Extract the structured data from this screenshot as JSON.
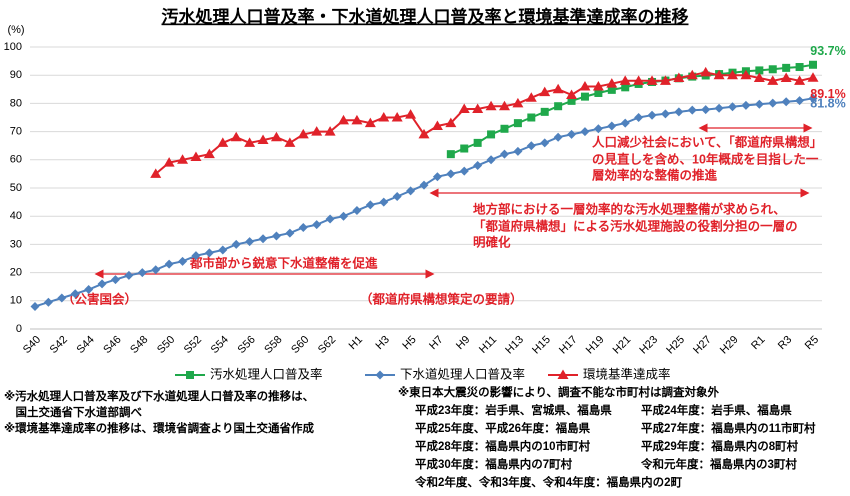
{
  "chart_data": {
    "type": "line",
    "title": "汚水処理人口普及率・下水道処理人口普及率と環境基準達成率の推移",
    "y_label": "(%)",
    "categories": [
      "S40",
      null,
      "S42",
      null,
      "S44",
      null,
      "S46",
      null,
      "S48",
      null,
      "S50",
      null,
      "S52",
      null,
      "S54",
      null,
      "S56",
      null,
      "S58",
      null,
      "S60",
      null,
      "S62",
      null,
      "H1",
      null,
      "H3",
      null,
      "H5",
      null,
      "H7",
      null,
      "H9",
      null,
      "H11",
      null,
      "H13",
      null,
      "H15",
      null,
      "H17",
      null,
      "H19",
      null,
      "H21",
      null,
      "H23",
      null,
      "H25",
      null,
      "H27",
      null,
      "H29",
      null,
      "R1",
      null,
      "R3",
      null,
      "R5"
    ],
    "ylim": [
      0,
      100
    ],
    "yticks": [
      0,
      10,
      20,
      30,
      40,
      50,
      60,
      70,
      80,
      90,
      100
    ],
    "grid": true,
    "series": [
      {
        "name": "汚水処理人口普及率",
        "color": "#1fa84b",
        "marker": "square",
        "values": [
          null,
          null,
          null,
          null,
          null,
          null,
          null,
          null,
          null,
          null,
          null,
          null,
          null,
          null,
          null,
          null,
          null,
          null,
          null,
          null,
          null,
          null,
          null,
          null,
          null,
          null,
          null,
          null,
          null,
          null,
          null,
          62,
          64,
          66,
          69,
          71,
          73,
          75,
          77,
          79,
          80.9,
          82.4,
          83.7,
          84.8,
          85.7,
          86.9,
          87.6,
          88.1,
          88.9,
          89.5,
          89.9,
          90.4,
          90.9,
          91.4,
          91.7,
          92.1,
          92.6,
          92.9,
          93.7
        ],
        "value_labels": [
          null,
          null,
          null,
          null,
          null,
          null,
          null,
          null,
          null,
          null,
          null,
          null,
          null,
          null,
          null,
          null,
          null,
          null,
          null,
          null,
          null,
          null,
          null,
          null,
          null,
          null,
          null,
          null,
          null,
          null,
          null,
          null,
          null,
          null,
          null,
          null,
          null,
          null,
          null,
          null,
          null,
          null,
          null,
          null,
          null,
          null,
          null,
          null,
          null,
          null,
          null,
          null,
          null,
          null,
          null,
          null,
          null,
          null,
          "93.7%"
        ]
      },
      {
        "name": "下水道処理人口普及率",
        "color": "#4f81bd",
        "marker": "diamond",
        "values": [
          8,
          9.5,
          11,
          12.5,
          14,
          16,
          17.5,
          19,
          20,
          21,
          23,
          24,
          26,
          27,
          28,
          30,
          31,
          32,
          33,
          34,
          36,
          37,
          39,
          40,
          42,
          44,
          45,
          47,
          49,
          51,
          54,
          55,
          56,
          58,
          60,
          62,
          63,
          65,
          66,
          68,
          69,
          70,
          71,
          72,
          73,
          75,
          75.8,
          76.3,
          77,
          77.6,
          77.8,
          78.3,
          78.8,
          79.3,
          79.7,
          80.1,
          80.6,
          81,
          81.8
        ],
        "value_labels": [
          null,
          null,
          null,
          null,
          null,
          null,
          null,
          null,
          null,
          null,
          null,
          null,
          null,
          null,
          null,
          null,
          null,
          null,
          null,
          null,
          null,
          null,
          null,
          null,
          null,
          null,
          null,
          null,
          null,
          null,
          null,
          null,
          null,
          null,
          null,
          null,
          null,
          null,
          null,
          null,
          null,
          null,
          null,
          null,
          null,
          null,
          null,
          null,
          null,
          null,
          null,
          null,
          null,
          null,
          null,
          null,
          null,
          null,
          "81.8%"
        ]
      },
      {
        "name": "環境基準達成率",
        "color": "#e0222a",
        "marker": "triangle",
        "values": [
          null,
          null,
          null,
          null,
          null,
          null,
          null,
          null,
          null,
          55,
          59,
          60,
          61,
          62,
          66,
          68,
          66,
          67,
          68,
          66,
          69,
          70,
          70,
          74,
          74,
          73,
          75,
          75,
          76,
          69,
          72,
          73,
          78,
          78,
          79,
          79,
          80,
          82,
          84,
          85,
          83,
          86,
          86,
          87,
          88,
          88,
          88,
          88,
          89,
          90,
          91,
          90,
          90,
          90,
          89,
          88,
          89,
          88,
          89.1
        ],
        "value_labels": [
          null,
          null,
          null,
          null,
          null,
          null,
          null,
          null,
          null,
          null,
          null,
          null,
          null,
          null,
          null,
          null,
          null,
          null,
          null,
          null,
          null,
          null,
          null,
          null,
          null,
          null,
          null,
          null,
          null,
          null,
          null,
          null,
          null,
          null,
          null,
          null,
          null,
          null,
          null,
          null,
          null,
          null,
          null,
          null,
          null,
          null,
          null,
          null,
          null,
          null,
          null,
          null,
          null,
          null,
          null,
          null,
          null,
          null,
          "89.1%"
        ]
      }
    ],
    "annotations": [
      {
        "lines": [
          "人口減少社会において、「都道府県構想」",
          "の見直しを含め、10年概成を目指した一",
          "層効率的な整備の推進"
        ]
      },
      {
        "lines": [
          "地方部における一層効率的な汚水処理整備が求められ、",
          "「都道府県構想」による汚水処理施設の役割分担の一層の",
          "明確化"
        ]
      },
      {
        "lines": [
          "都市部から鋭意下水道整備を促進"
        ]
      },
      {
        "lines": [
          "（公害国会）"
        ]
      },
      {
        "lines": [
          "（都道府県構想策定の要請）"
        ]
      }
    ]
  },
  "footnotes": {
    "left": [
      "※汚水処理人口普及率及び下水道処理人口普及率の推移は、",
      "　国土交通省下水道部調べ",
      "※環境基準達成率の推移は、環境省調査より国土交通省作成"
    ],
    "right_title": "※東日本大震災の影響により、調査不能な市町村は調査対象外",
    "right_rows": [
      [
        "平成23年度：岩手県、宮城県、福島県",
        "平成24年度：岩手県、福島県"
      ],
      [
        "平成25年度、平成26年度：福島県",
        "平成27年度：福島県内の11市町村"
      ],
      [
        "平成28年度：福島県内の10市町村",
        "平成29年度：福島県内の8町村"
      ],
      [
        "平成30年度：福島県内の7町村",
        "令和元年度：福島県内の3町村"
      ],
      [
        "令和2年度、令和3年度、令和4年度：福島県内の2町"
      ]
    ]
  }
}
